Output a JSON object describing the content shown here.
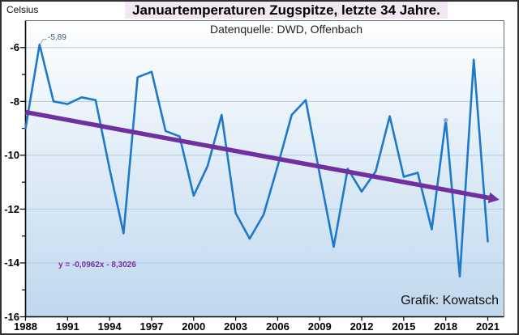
{
  "title": "Januartemperaturen Zugspitze, letzte 34 Jahre.",
  "subtitle": "Datenquelle: DWD, Offenbach",
  "y_axis_unit": "Celsius",
  "credit": "Grafik: Kowatsch",
  "colors": {
    "series": "#1e79cb",
    "trend": "#7030a0",
    "grid": "#afcde9",
    "axis": "#000000",
    "frame_gray": "#6e6e6e",
    "marker": "#8ba7d3",
    "leader": "#9aa5b1",
    "title_bg": "#f2e8f3",
    "plot_gradient_top": "#fdfeff",
    "plot_gradient_bottom": "#c0d8ee"
  },
  "chart_data": {
    "type": "line",
    "title": "Januartemperaturen Zugspitze, letzte 34 Jahre.",
    "subtitle": "Datenquelle: DWD, Offenbach",
    "ylabel": "Celsius",
    "xlabel": "",
    "grid": "horizontal",
    "legend_position": "none",
    "ylim": [
      -16,
      -5
    ],
    "x": [
      1988,
      1989,
      1990,
      1991,
      1992,
      1993,
      1994,
      1995,
      1996,
      1997,
      1998,
      1999,
      2000,
      2001,
      2002,
      2003,
      2004,
      2005,
      2006,
      2007,
      2008,
      2009,
      2010,
      2011,
      2012,
      2013,
      2014,
      2015,
      2016,
      2017,
      2018,
      2019,
      2020,
      2021
    ],
    "values": [
      -9.0,
      -5.89,
      -8.0,
      -8.1,
      -7.85,
      -7.95,
      -10.5,
      -12.9,
      -7.1,
      -6.9,
      -9.1,
      -9.3,
      -11.5,
      -10.4,
      -8.5,
      -12.15,
      -13.1,
      -12.2,
      -10.4,
      -8.5,
      -7.95,
      -10.7,
      -13.4,
      -10.5,
      -11.35,
      -10.6,
      -8.55,
      -10.8,
      -10.65,
      -12.75,
      -8.7,
      -14.5,
      -6.45,
      -13.2
    ],
    "x_ticks": [
      1988,
      1991,
      1994,
      1997,
      2000,
      2003,
      2006,
      2009,
      2012,
      2015,
      2018,
      2021
    ],
    "y_ticks": [
      -6,
      -8,
      -10,
      -12,
      -14,
      -16
    ],
    "y_minor_step": 1,
    "trend": {
      "label": "y = -0,0962x - 8,3026",
      "slope": -0.0962,
      "intercept": -8.3026,
      "x_index_start": 1
    },
    "max_point": {
      "year": 1989,
      "value": -5.89,
      "label": "-5,89"
    },
    "marked_point": {
      "year": 2018,
      "value": -8.7
    }
  }
}
